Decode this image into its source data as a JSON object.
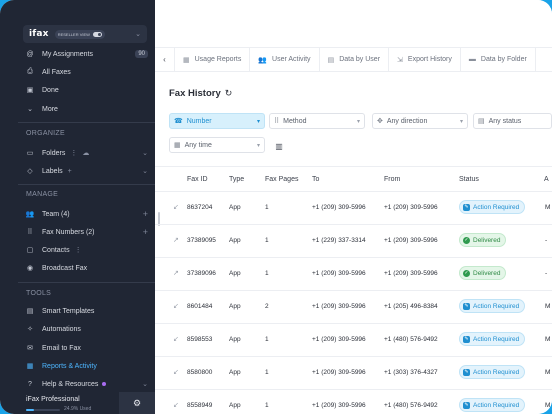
{
  "sidebar": {
    "brand": {
      "logo": "ifax",
      "badge": "RESELLER VIEW"
    },
    "top_items": [
      {
        "label": "My Assignments",
        "count": "90",
        "icon": "at-icon"
      },
      {
        "label": "All Faxes",
        "icon": "printer-icon"
      },
      {
        "label": "Done",
        "icon": "inbox-icon"
      },
      {
        "label": "More",
        "icon": "chevron-down-icon"
      }
    ],
    "organize_title": "ORGANIZE",
    "organize_items": [
      {
        "label": "Folders",
        "icon": "folder-icon"
      },
      {
        "label": "Labels",
        "icon": "tag-icon"
      }
    ],
    "manage_title": "MANAGE",
    "manage_items": [
      {
        "label": "Team (4)",
        "icon": "team-icon"
      },
      {
        "label": "Fax Numbers (2)",
        "icon": "keypad-icon"
      },
      {
        "label": "Contacts",
        "icon": "contacts-icon"
      },
      {
        "label": "Broadcast Fax",
        "icon": "broadcast-icon"
      }
    ],
    "tools_title": "TOOLS",
    "tools_items": [
      {
        "label": "Smart Templates",
        "icon": "template-icon"
      },
      {
        "label": "Automations",
        "icon": "automation-icon"
      },
      {
        "label": "Email to Fax",
        "icon": "mail-icon"
      },
      {
        "label": "Reports & Activity",
        "icon": "reports-icon",
        "active": true
      },
      {
        "label": "Help & Resources",
        "icon": "help-icon"
      }
    ],
    "plan": {
      "name": "iFax Professional",
      "usage_text": "24.9% Used",
      "usage_fraction": 0.249
    }
  },
  "tabs": [
    {
      "label": "Usage Reports",
      "icon": "report-icon"
    },
    {
      "label": "User Activity",
      "icon": "users-icon"
    },
    {
      "label": "Data by User",
      "icon": "data-icon"
    },
    {
      "label": "Export History",
      "icon": "export-icon"
    },
    {
      "label": "Data by Folder",
      "icon": "folder-icon"
    }
  ],
  "page": {
    "title": "Fax History"
  },
  "filters": {
    "number": "Number",
    "method": "Method",
    "direction": "Any direction",
    "status": "Any status",
    "time": "Any time"
  },
  "table": {
    "columns": [
      "Fax ID",
      "Type",
      "Fax Pages",
      "To",
      "From",
      "Status",
      "A"
    ],
    "rows": [
      {
        "dir": "in",
        "id": "8637204",
        "type": "App",
        "pages": "1",
        "to": "+1 (209) 309-5996",
        "from": "+1 (209) 309-5996",
        "status": "Action Required",
        "kind": "req",
        "last": "M"
      },
      {
        "dir": "out",
        "id": "37389095",
        "type": "App",
        "pages": "1",
        "to": "+1 (229) 337-3314",
        "from": "+1 (209) 309-5996",
        "status": "Delivered",
        "kind": "del",
        "last": "-"
      },
      {
        "dir": "out",
        "id": "37389096",
        "type": "App",
        "pages": "1",
        "to": "+1 (209) 309-5996",
        "from": "+1 (209) 309-5996",
        "status": "Delivered",
        "kind": "del",
        "last": "-"
      },
      {
        "dir": "in",
        "id": "8601484",
        "type": "App",
        "pages": "2",
        "to": "+1 (209) 309-5996",
        "from": "+1 (205) 496-8384",
        "status": "Action Required",
        "kind": "req",
        "last": "M"
      },
      {
        "dir": "in",
        "id": "8598553",
        "type": "App",
        "pages": "1",
        "to": "+1 (209) 309-5996",
        "from": "+1 (480) 576-9492",
        "status": "Action Required",
        "kind": "req",
        "last": "M"
      },
      {
        "dir": "in",
        "id": "8580800",
        "type": "App",
        "pages": "1",
        "to": "+1 (209) 309-5996",
        "from": "+1 (303) 376-4327",
        "status": "Action Required",
        "kind": "req",
        "last": "M"
      },
      {
        "dir": "in",
        "id": "8558949",
        "type": "App",
        "pages": "1",
        "to": "+1 (209) 309-5996",
        "from": "+1 (480) 576-9492",
        "status": "Action Required",
        "kind": "req",
        "last": "M"
      }
    ]
  },
  "colors": {
    "accent": "#4db6ff",
    "sidebar_bg": "#202634",
    "frame": "#1aa3e8"
  }
}
